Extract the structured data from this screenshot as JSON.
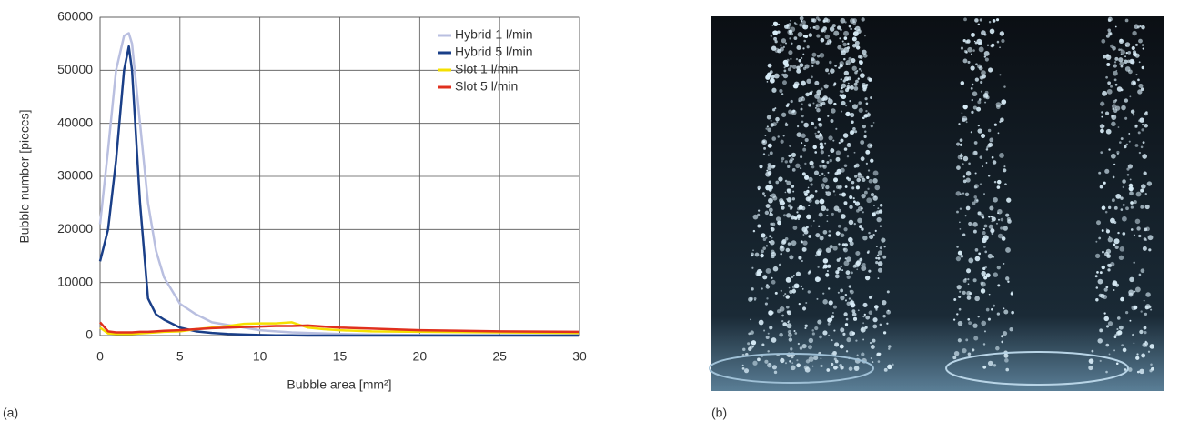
{
  "chart_data": {
    "type": "line",
    "x_label": "Bubble area [mm²]",
    "y_label": "Bubble number [pieces]",
    "panel_labels": [
      "(a)",
      "(b)"
    ],
    "x": [
      0,
      0.5,
      1,
      1.5,
      1.8,
      2,
      2.5,
      3,
      3.5,
      4,
      5,
      6,
      7,
      8,
      9,
      10,
      11,
      12,
      13,
      14,
      15,
      17,
      20,
      25,
      30
    ],
    "series": [
      {
        "name": "Hybrid 1 l/min",
        "color": "#b9bfe0",
        "values": [
          21000,
          35000,
          50000,
          56500,
          57000,
          55000,
          40000,
          25000,
          16000,
          11000,
          6000,
          4000,
          2500,
          2000,
          1500,
          1000,
          800,
          600,
          500,
          400,
          300,
          200,
          100,
          50,
          0
        ]
      },
      {
        "name": "Hybrid 5 l/min",
        "color": "#1a3f88",
        "values": [
          14000,
          20000,
          33000,
          50000,
          54500,
          50000,
          25000,
          7000,
          4000,
          3000,
          1500,
          800,
          500,
          300,
          200,
          100,
          50,
          50,
          0,
          0,
          0,
          0,
          0,
          0,
          0
        ]
      },
      {
        "name": "Slot 1 l/min",
        "color": "#f5e000",
        "values": [
          1500,
          400,
          300,
          300,
          300,
          300,
          400,
          500,
          600,
          700,
          800,
          1200,
          1500,
          1800,
          2200,
          2300,
          2300,
          2500,
          1500,
          1200,
          1000,
          800,
          700,
          600,
          500
        ]
      },
      {
        "name": "Slot 5 l/min",
        "color": "#e0301e",
        "values": [
          2500,
          800,
          600,
          600,
          600,
          600,
          700,
          700,
          800,
          900,
          1000,
          1200,
          1400,
          1500,
          1600,
          1700,
          1800,
          1800,
          1900,
          1700,
          1500,
          1300,
          1000,
          800,
          700
        ]
      }
    ],
    "xlim": [
      0,
      30
    ],
    "xticks": [
      0,
      5,
      10,
      15,
      20,
      25,
      30
    ],
    "ylim": [
      0,
      60000
    ],
    "yticks": [
      0,
      10000,
      20000,
      30000,
      40000,
      50000,
      60000
    ],
    "grid": true,
    "legend": "top-right"
  }
}
